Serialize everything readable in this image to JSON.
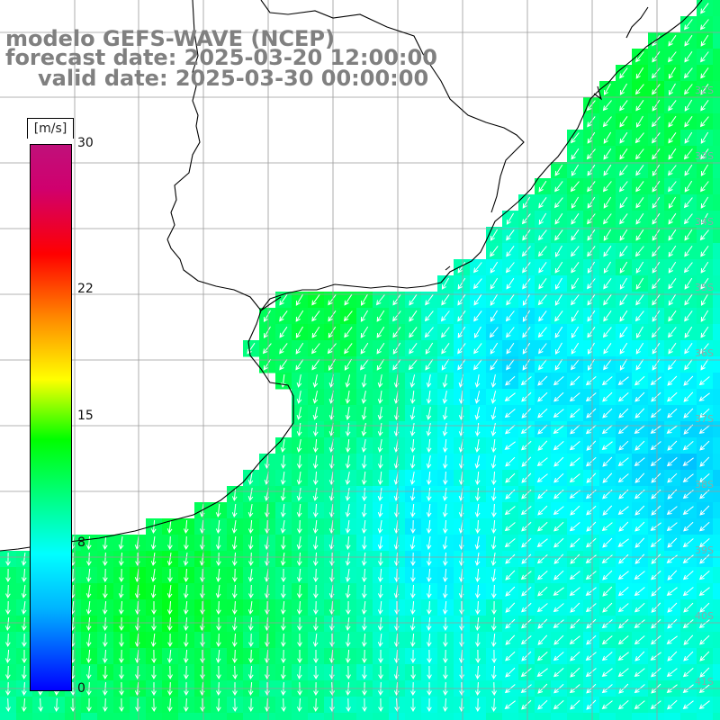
{
  "title": {
    "line1": "modelo GEFS-WAVE (NCEP)",
    "line2": "forecast date: 2025-03-20 12:00:00",
    "line3": "valid date: 2025-03-30 00:00:00"
  },
  "colorbar": {
    "unit": "[m/s]",
    "ticks": [
      {
        "label": "30",
        "value": 30
      },
      {
        "label": "22",
        "value": 22
      },
      {
        "label": "15",
        "value": 15
      },
      {
        "label": "8",
        "value": 8
      },
      {
        "label": "0",
        "value": 0
      }
    ],
    "range": [
      0,
      30
    ]
  },
  "grid": {
    "lat_labels": [
      "32S",
      "33S",
      "34S",
      "35S",
      "36S",
      "37S",
      "38S",
      "39S",
      "40S",
      "41S"
    ]
  },
  "colors": {
    "land": "#ffffff",
    "coast": "#000000",
    "grid": "#9a9a9a",
    "arrow": "#ffffff",
    "title": "#808080"
  }
}
